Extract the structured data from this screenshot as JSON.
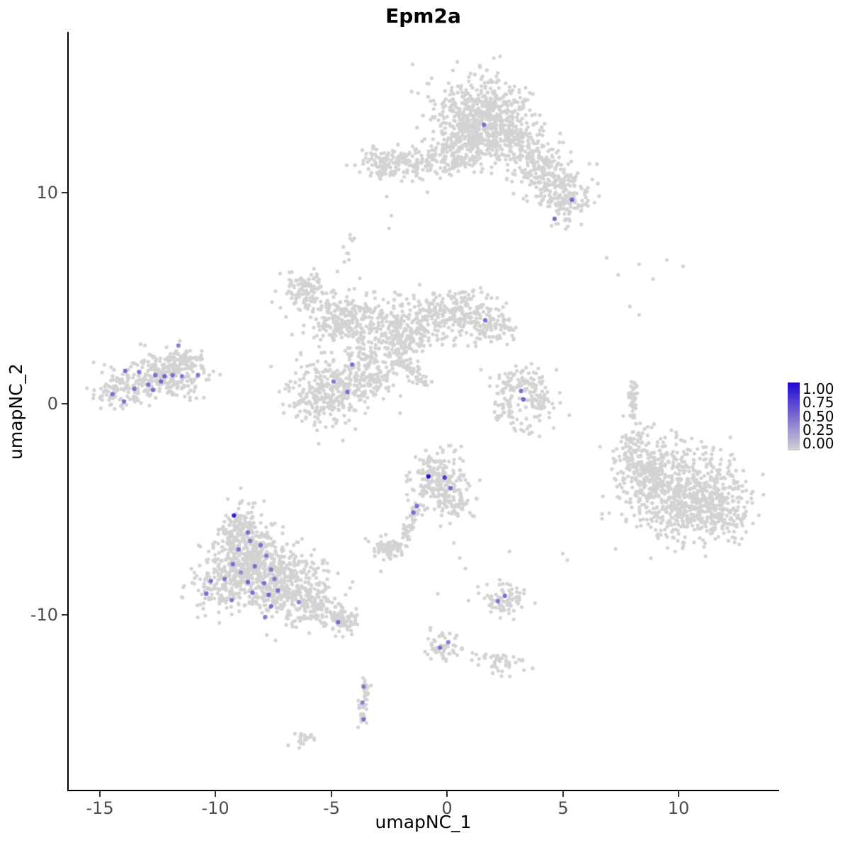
{
  "chart_data": {
    "type": "scatter",
    "title": "Epm2a",
    "xlabel": "umapNC_1",
    "ylabel": "umapNC_2",
    "xlim": [
      -16.4,
      14.35
    ],
    "ylim": [
      -18.35,
      17.6
    ],
    "x_ticks": [
      "-15",
      "-10",
      "-5",
      "0",
      "5",
      "10"
    ],
    "y_ticks": [
      "10",
      "0",
      "-10"
    ],
    "grid": false,
    "legend": {
      "position": "right",
      "labels": [
        "1.00",
        "0.75",
        "0.50",
        "0.25",
        "0.00"
      ]
    },
    "scale": {
      "low": "#D3D3D3",
      "high": "#2107CD"
    },
    "clusters": [
      {
        "x": 1.5,
        "y": 13.9,
        "sx": 1.05,
        "sy": 0.8,
        "n": 420
      },
      {
        "x": 0.9,
        "y": 12.5,
        "sx": 0.7,
        "sy": 0.6,
        "n": 170
      },
      {
        "x": 2.6,
        "y": 12.6,
        "sx": 0.75,
        "sy": 0.7,
        "n": 200
      },
      {
        "x": 3.9,
        "y": 11.4,
        "sx": 0.65,
        "sy": 0.6,
        "n": 150
      },
      {
        "x": 4.9,
        "y": 10.2,
        "sx": 0.6,
        "sy": 0.55,
        "n": 140
      },
      {
        "x": 5.3,
        "y": 9.3,
        "sx": 0.45,
        "sy": 0.4,
        "n": 60
      },
      {
        "x": -1.4,
        "y": 11.3,
        "sx": 0.95,
        "sy": 0.38,
        "n": 120
      },
      {
        "x": -2.7,
        "y": 11.4,
        "sx": 0.45,
        "sy": 0.4,
        "n": 80
      },
      {
        "x": 0.2,
        "y": 11.7,
        "sx": 0.5,
        "sy": 0.45,
        "n": 70
      },
      {
        "x": -6.1,
        "y": 5.4,
        "sx": 0.5,
        "sy": 0.45,
        "n": 110
      },
      {
        "x": -4.4,
        "y": 4.0,
        "sx": 0.75,
        "sy": 0.6,
        "n": 260
      },
      {
        "x": -2.0,
        "y": 3.4,
        "sx": 0.8,
        "sy": 0.65,
        "n": 260
      },
      {
        "x": 0.2,
        "y": 4.3,
        "sx": 0.9,
        "sy": 0.55,
        "n": 220
      },
      {
        "x": 1.9,
        "y": 3.7,
        "sx": 0.55,
        "sy": 0.45,
        "n": 90
      },
      {
        "x": -5.2,
        "y": 0.5,
        "sx": 0.85,
        "sy": 0.8,
        "n": 300
      },
      {
        "x": -3.3,
        "y": 1.5,
        "sx": 0.6,
        "sy": 0.65,
        "n": 150
      },
      {
        "line": [
          -2.6,
          2.6,
          -1.0,
          1.0
        ],
        "jitter": 0.15,
        "n": 70
      },
      {
        "line": [
          -4.6,
          6.1,
          -4.1,
          8.1
        ],
        "jitter": 0.12,
        "n": 10
      },
      {
        "x": -12.3,
        "y": 1.35,
        "sx": 0.95,
        "sy": 0.55,
        "n": 260
      },
      {
        "x": -14.0,
        "y": 0.6,
        "sx": 0.55,
        "sy": 0.4,
        "n": 90
      },
      {
        "x": -11.3,
        "y": 2.0,
        "sx": 0.45,
        "sy": 0.35,
        "n": 50
      },
      {
        "x": 3.1,
        "y": 1.0,
        "sx": 0.6,
        "sy": 0.4,
        "n": 80
      },
      {
        "x": 4.0,
        "y": 0.1,
        "sx": 0.35,
        "sy": 0.55,
        "n": 55
      },
      {
        "x": 2.6,
        "y": -0.1,
        "sx": 0.3,
        "sy": 0.4,
        "n": 40
      },
      {
        "x": 3.4,
        "y": -1.2,
        "sx": 0.3,
        "sy": 0.25,
        "n": 14
      },
      {
        "line": [
          8.0,
          -0.6,
          8.05,
          1.1
        ],
        "jitter": 0.1,
        "n": 40
      },
      {
        "x": 10.3,
        "y": -4.3,
        "sx": 1.2,
        "sy": 1.1,
        "n": 650
      },
      {
        "x": 8.6,
        "y": -3.2,
        "sx": 0.65,
        "sy": 0.8,
        "n": 200
      },
      {
        "x": 11.8,
        "y": -5.2,
        "sx": 0.6,
        "sy": 0.6,
        "n": 120
      },
      {
        "x": 8.0,
        "y": -1.9,
        "sx": 0.3,
        "sy": 0.4,
        "n": 40
      },
      {
        "x": -0.3,
        "y": -3.6,
        "sx": 0.6,
        "sy": 0.7,
        "n": 200
      },
      {
        "x": 0.3,
        "y": -4.7,
        "sx": 0.4,
        "sy": 0.4,
        "n": 60
      },
      {
        "line": [
          -1.2,
          -4.8,
          -1.9,
          -6.4
        ],
        "jitter": 0.12,
        "n": 45
      },
      {
        "x": -2.5,
        "y": -6.75,
        "sx": 0.42,
        "sy": 0.3,
        "n": 80
      },
      {
        "x": -9.1,
        "y": -5.6,
        "sx": 0.4,
        "sy": 0.4,
        "n": 50
      },
      {
        "x": -8.7,
        "y": -6.4,
        "sx": 0.65,
        "sy": 0.6,
        "n": 150
      },
      {
        "x": -8.3,
        "y": -7.6,
        "sx": 1.0,
        "sy": 0.75,
        "n": 340
      },
      {
        "x": -7.2,
        "y": -8.7,
        "sx": 1.0,
        "sy": 0.75,
        "n": 340
      },
      {
        "x": -9.6,
        "y": -8.6,
        "sx": 0.7,
        "sy": 0.6,
        "n": 150
      },
      {
        "x": -5.7,
        "y": -9.6,
        "sx": 0.7,
        "sy": 0.45,
        "n": 130
      },
      {
        "x": -4.5,
        "y": -10.3,
        "sx": 0.35,
        "sy": 0.3,
        "n": 60
      },
      {
        "x": -0.2,
        "y": -11.5,
        "sx": 0.45,
        "sy": 0.33,
        "n": 55
      },
      {
        "x": 2.3,
        "y": -12.2,
        "sx": 0.5,
        "sy": 0.28,
        "n": 45
      },
      {
        "line": [
          -3.55,
          -13.1,
          -3.75,
          -15.2
        ],
        "jitter": 0.12,
        "n": 45
      },
      {
        "x": -6.15,
        "y": -15.9,
        "sx": 0.28,
        "sy": 0.18,
        "n": 22
      },
      {
        "x": 2.45,
        "y": -9.3,
        "sx": 0.5,
        "sy": 0.4,
        "n": 75
      }
    ],
    "sparse_points": [
      [
        6.9,
        6.9
      ],
      [
        8.3,
        6.6
      ],
      [
        9.5,
        6.8
      ],
      [
        10.2,
        6.5
      ],
      [
        7.4,
        6.1
      ],
      [
        8.9,
        5.9
      ],
      [
        7.9,
        4.6
      ],
      [
        8.3,
        4.2
      ],
      [
        5.0,
        -7.1
      ],
      [
        5.2,
        -7.4
      ],
      [
        2.7,
        -7.0
      ],
      [
        0.55,
        -7.3
      ],
      [
        0.8,
        -7.8
      ],
      [
        -0.4,
        -9.0
      ],
      [
        -8.9,
        -4.0
      ],
      [
        2.3,
        3.1
      ],
      [
        2.6,
        2.8
      ],
      [
        -2.6,
        9.8
      ],
      [
        -2.4,
        8.9
      ],
      [
        -2.5,
        8.3
      ],
      [
        -10.5,
        1.6
      ],
      [
        0.3,
        -6.6
      ],
      [
        1.1,
        -11.8
      ]
    ],
    "expressed_cells": [
      [
        -13.9,
        1.55,
        0.5
      ],
      [
        -13.3,
        1.5,
        0.45
      ],
      [
        -12.6,
        1.35,
        0.5
      ],
      [
        -12.2,
        1.3,
        0.55
      ],
      [
        -11.85,
        1.35,
        0.5
      ],
      [
        -11.45,
        1.3,
        0.45
      ],
      [
        -12.9,
        0.9,
        0.5
      ],
      [
        -12.7,
        0.65,
        0.5
      ],
      [
        -13.5,
        0.7,
        0.45
      ],
      [
        -14.45,
        0.45,
        0.5
      ],
      [
        -13.95,
        0.1,
        0.5
      ],
      [
        -11.6,
        2.75,
        0.4
      ],
      [
        -10.75,
        1.35,
        0.45
      ],
      [
        -12.35,
        1.05,
        0.55
      ],
      [
        1.6,
        13.2,
        0.5
      ],
      [
        5.4,
        9.65,
        0.55
      ],
      [
        4.65,
        8.75,
        0.5
      ],
      [
        1.65,
        3.95,
        0.5
      ],
      [
        -4.1,
        1.85,
        0.5
      ],
      [
        -4.9,
        1.05,
        0.45
      ],
      [
        -4.3,
        0.55,
        0.5
      ],
      [
        3.2,
        0.6,
        0.5
      ],
      [
        3.3,
        0.2,
        0.55
      ],
      [
        -0.8,
        -3.45,
        0.95
      ],
      [
        -0.1,
        -3.5,
        0.75
      ],
      [
        0.15,
        -4.0,
        0.55
      ],
      [
        -1.3,
        -4.85,
        0.5
      ],
      [
        -1.45,
        -5.15,
        0.5
      ],
      [
        -9.2,
        -5.3,
        0.9
      ],
      [
        -8.6,
        -6.1,
        0.5
      ],
      [
        -8.5,
        -6.5,
        0.45
      ],
      [
        -9.0,
        -6.9,
        0.5
      ],
      [
        -8.05,
        -6.7,
        0.5
      ],
      [
        -7.8,
        -7.2,
        0.45
      ],
      [
        -9.25,
        -7.6,
        0.5
      ],
      [
        -8.3,
        -7.7,
        0.5
      ],
      [
        -7.6,
        -7.85,
        0.45
      ],
      [
        -10.2,
        -8.4,
        0.5
      ],
      [
        -9.6,
        -8.3,
        0.45
      ],
      [
        -8.6,
        -8.45,
        0.55
      ],
      [
        -7.9,
        -8.5,
        0.5
      ],
      [
        -7.45,
        -8.3,
        0.45
      ],
      [
        -8.4,
        -8.95,
        0.5
      ],
      [
        -7.7,
        -9.05,
        0.55
      ],
      [
        -7.3,
        -8.85,
        0.5
      ],
      [
        -10.4,
        -9.0,
        0.5
      ],
      [
        -9.3,
        -9.3,
        0.45
      ],
      [
        -7.6,
        -9.6,
        0.5
      ],
      [
        -7.85,
        -10.1,
        0.45
      ],
      [
        -6.4,
        -9.4,
        0.4
      ],
      [
        -4.7,
        -10.35,
        0.5
      ],
      [
        -8.9,
        -8.0,
        0.35
      ],
      [
        -0.3,
        -11.55,
        0.5
      ],
      [
        0.05,
        -11.3,
        0.4
      ],
      [
        -3.6,
        -13.4,
        0.45
      ],
      [
        -3.65,
        -14.15,
        0.4
      ],
      [
        -3.6,
        -14.95,
        0.5
      ],
      [
        2.5,
        -9.1,
        0.5
      ],
      [
        2.2,
        -9.35,
        0.45
      ]
    ]
  }
}
